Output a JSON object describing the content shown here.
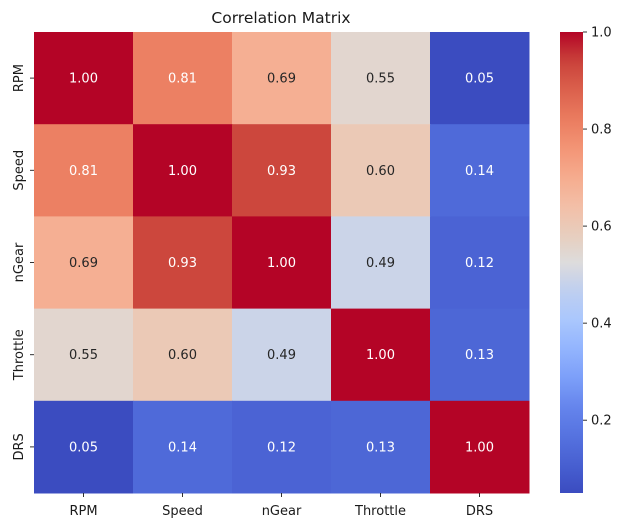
{
  "chart_data": {
    "type": "heatmap",
    "title": "Correlation Matrix",
    "xlabel": "",
    "ylabel": "",
    "x_categories": [
      "RPM",
      "Speed",
      "nGear",
      "Throttle",
      "DRS"
    ],
    "y_categories": [
      "RPM",
      "Speed",
      "nGear",
      "Throttle",
      "DRS"
    ],
    "values": [
      [
        1.0,
        0.81,
        0.69,
        0.55,
        0.05
      ],
      [
        0.81,
        1.0,
        0.93,
        0.6,
        0.14
      ],
      [
        0.69,
        0.93,
        1.0,
        0.49,
        0.12
      ],
      [
        0.55,
        0.6,
        0.49,
        1.0,
        0.13
      ],
      [
        0.05,
        0.14,
        0.12,
        0.13,
        1.0
      ]
    ],
    "annotation_format": "0.00",
    "colormap": "coolwarm",
    "color_range": [
      0.05,
      1.0
    ],
    "colorbar": {
      "ticks": [
        0.2,
        0.4,
        0.6,
        0.8,
        1.0
      ],
      "tick_labels": [
        "0.2",
        "0.4",
        "0.6",
        "0.8",
        "1.0"
      ],
      "placement": "right"
    },
    "grid": false
  }
}
